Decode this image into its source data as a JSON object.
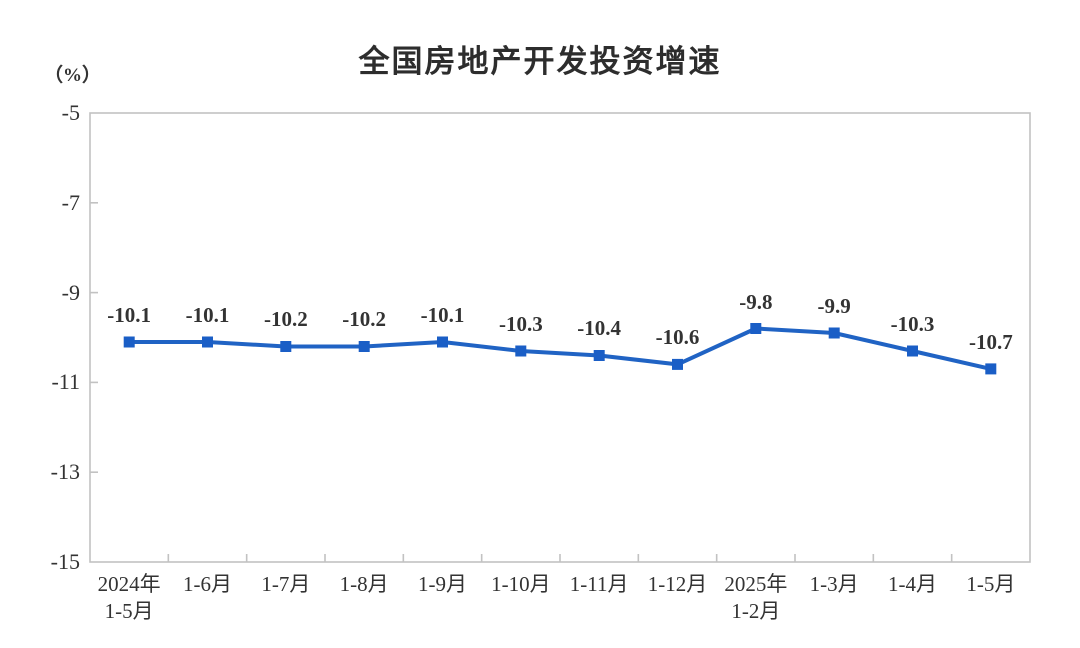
{
  "chart_data": {
    "type": "line",
    "title": "全国房地产开发投资增速",
    "unit_label": "（%）",
    "categories": [
      [
        "2024年",
        "1-5月"
      ],
      [
        "1-6月"
      ],
      [
        "1-7月"
      ],
      [
        "1-8月"
      ],
      [
        "1-9月"
      ],
      [
        "1-10月"
      ],
      [
        "1-11月"
      ],
      [
        "1-12月"
      ],
      [
        "2025年",
        "1-2月"
      ],
      [
        "1-3月"
      ],
      [
        "1-4月"
      ],
      [
        "1-5月"
      ]
    ],
    "values": [
      -10.1,
      -10.1,
      -10.2,
      -10.2,
      -10.1,
      -10.3,
      -10.4,
      -10.6,
      -9.8,
      -9.9,
      -10.3,
      -10.7
    ],
    "data_labels": [
      "-10.1",
      "-10.1",
      "-10.2",
      "-10.2",
      "-10.1",
      "-10.3",
      "-10.4",
      "-10.6",
      "-9.8",
      "-9.9",
      "-10.3",
      "-10.7"
    ],
    "xlabel": "",
    "ylabel": "（%）",
    "ylim": [
      -15,
      -5
    ],
    "yticks": [
      -5,
      -7,
      -9,
      -11,
      -13,
      -15
    ],
    "grid": false,
    "legend": "none",
    "colors": {
      "line": "#2063c4",
      "marker": "#1a5ec6",
      "axis": "#c2c2c2",
      "text": "#333333",
      "title": "#2d2d2d"
    }
  }
}
